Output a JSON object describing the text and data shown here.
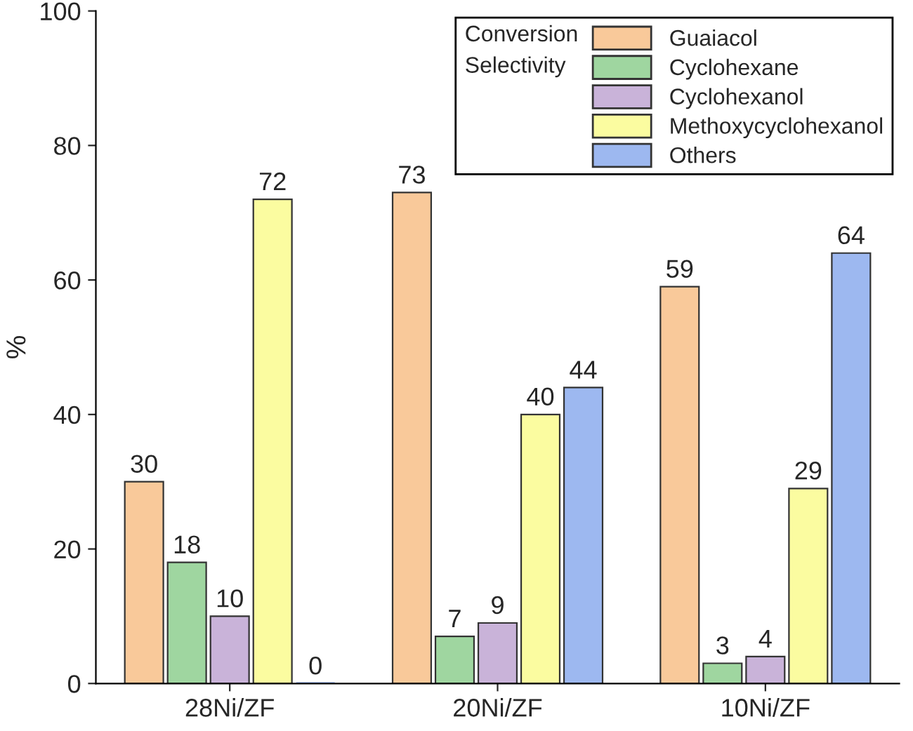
{
  "chart_data": {
    "type": "bar",
    "ylabel": "%",
    "categories": [
      "28Ni/ZF",
      "20Ni/ZF",
      "10Ni/ZF"
    ],
    "series": [
      {
        "name": "Guaiacol",
        "color": "#f9c99a",
        "values": [
          30,
          73,
          59
        ]
      },
      {
        "name": "Cyclohexane",
        "color": "#9fd6a0",
        "values": [
          18,
          7,
          3
        ]
      },
      {
        "name": "Cyclohexanol",
        "color": "#c9b3d9",
        "values": [
          10,
          9,
          4
        ]
      },
      {
        "name": "Methoxycyclohexanol",
        "color": "#fbfca0",
        "values": [
          72,
          40,
          29
        ]
      },
      {
        "name": "Others",
        "color": "#9db8f0",
        "values": [
          0,
          44,
          64
        ]
      }
    ],
    "annotations": [
      "Conversion",
      "Selectivity"
    ],
    "ylim": [
      0,
      100
    ],
    "yticks": [
      0,
      20,
      40,
      60,
      80,
      100
    ],
    "grid": false,
    "legend": "top right",
    "data_labels": true
  }
}
